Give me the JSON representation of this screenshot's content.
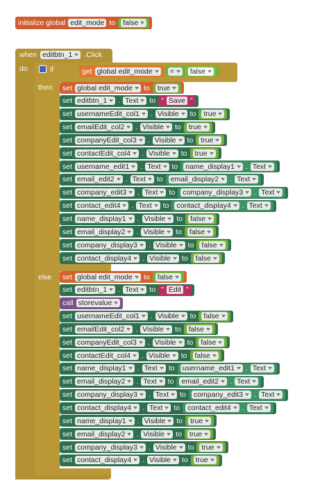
{
  "init": {
    "keyword": "initialize global",
    "name": "edit_mode",
    "to": "to",
    "value": "false"
  },
  "event": {
    "when": "when",
    "component": "editbtn_1",
    "event": ".Click",
    "do": "do",
    "if": {
      "keyword": "if",
      "get": "get",
      "variable": "global edit_mode",
      "operator": "=",
      "compare": "false",
      "then": "then",
      "else": "else"
    },
    "then_blocks": [
      {
        "kind": "global",
        "kw": "set",
        "target": "global edit_mode",
        "to": "to",
        "value": {
          "kind": "bool",
          "text": "true"
        }
      },
      {
        "kind": "component",
        "kw": "set",
        "target": "editbtn_1",
        "dot": ".",
        "prop": "Text",
        "to": "to",
        "value": {
          "kind": "string",
          "open": "\"",
          "text": "Save",
          "close": "\""
        }
      },
      {
        "kind": "component",
        "kw": "set",
        "target": "usernameEdit_col1",
        "dot": ".",
        "prop": "Visible",
        "to": "to",
        "value": {
          "kind": "bool",
          "text": "true"
        }
      },
      {
        "kind": "component",
        "kw": "set",
        "target": "emailEdit_col2",
        "dot": ".",
        "prop": "Visible",
        "to": "to",
        "value": {
          "kind": "bool",
          "text": "true"
        }
      },
      {
        "kind": "component",
        "kw": "set",
        "target": "companyEdit_col3",
        "dot": ".",
        "prop": "Visible",
        "to": "to",
        "value": {
          "kind": "bool",
          "text": "true"
        }
      },
      {
        "kind": "component",
        "kw": "set",
        "target": "contactEdit_col4",
        "dot": ".",
        "prop": "Visible",
        "to": "to",
        "value": {
          "kind": "bool",
          "text": "true"
        }
      },
      {
        "kind": "component",
        "kw": "set",
        "target": "username_edit1",
        "dot": ".",
        "prop": "Text",
        "to": "to",
        "value": {
          "kind": "getter",
          "component": "name_display1",
          "dot": ".",
          "prop": "Text"
        }
      },
      {
        "kind": "component",
        "kw": "set",
        "target": "email_edit2",
        "dot": ".",
        "prop": "Text",
        "to": "to",
        "value": {
          "kind": "getter",
          "component": "email_display2",
          "dot": ".",
          "prop": "Text"
        }
      },
      {
        "kind": "component",
        "kw": "set",
        "target": "company_edit3",
        "dot": ".",
        "prop": "Text",
        "to": "to",
        "value": {
          "kind": "getter",
          "component": "company_display3",
          "dot": ".",
          "prop": "Text"
        }
      },
      {
        "kind": "component",
        "kw": "set",
        "target": "contact_edit4",
        "dot": ".",
        "prop": "Text",
        "to": "to",
        "value": {
          "kind": "getter",
          "component": "contact_display4",
          "dot": ".",
          "prop": "Text"
        }
      },
      {
        "kind": "component",
        "kw": "set",
        "target": "name_display1",
        "dot": ".",
        "prop": "Visible",
        "to": "to",
        "value": {
          "kind": "bool",
          "text": "false"
        }
      },
      {
        "kind": "component",
        "kw": "set",
        "target": "email_display2",
        "dot": ".",
        "prop": "Visible",
        "to": "to",
        "value": {
          "kind": "bool",
          "text": "false"
        }
      },
      {
        "kind": "component",
        "kw": "set",
        "target": "company_display3",
        "dot": ".",
        "prop": "Visible",
        "to": "to",
        "value": {
          "kind": "bool",
          "text": "false"
        }
      },
      {
        "kind": "component",
        "kw": "set",
        "target": "contact_display4",
        "dot": ".",
        "prop": "Visible",
        "to": "to",
        "value": {
          "kind": "bool",
          "text": "false"
        }
      }
    ],
    "else_blocks": [
      {
        "kind": "global",
        "kw": "set",
        "target": "global edit_mode",
        "to": "to",
        "value": {
          "kind": "bool",
          "text": "false"
        }
      },
      {
        "kind": "component",
        "kw": "set",
        "target": "editbtn_1",
        "dot": ".",
        "prop": "Text",
        "to": "to",
        "value": {
          "kind": "string",
          "open": "\"",
          "text": "Edit",
          "close": "\""
        }
      },
      {
        "kind": "call",
        "kw": "call",
        "target": "storevalue"
      },
      {
        "kind": "component",
        "kw": "set",
        "target": "usernameEdit_col1",
        "dot": ".",
        "prop": "Visible",
        "to": "to",
        "value": {
          "kind": "bool",
          "text": "false"
        }
      },
      {
        "kind": "component",
        "kw": "set",
        "target": "emailEdit_col2",
        "dot": ".",
        "prop": "Visible",
        "to": "to",
        "value": {
          "kind": "bool",
          "text": "false"
        }
      },
      {
        "kind": "component",
        "kw": "set",
        "target": "companyEdit_col3",
        "dot": ".",
        "prop": "Visible",
        "to": "to",
        "value": {
          "kind": "bool",
          "text": "false"
        }
      },
      {
        "kind": "component",
        "kw": "set",
        "target": "contactEdit_col4",
        "dot": ".",
        "prop": "Visible",
        "to": "to",
        "value": {
          "kind": "bool",
          "text": "false"
        }
      },
      {
        "kind": "component",
        "kw": "set",
        "target": "name_display1",
        "dot": ".",
        "prop": "Text",
        "to": "to",
        "value": {
          "kind": "getter",
          "component": "username_edit1",
          "dot": ".",
          "prop": "Text"
        }
      },
      {
        "kind": "component",
        "kw": "set",
        "target": "email_display2",
        "dot": ".",
        "prop": "Text",
        "to": "to",
        "value": {
          "kind": "getter",
          "component": "email_edit2",
          "dot": ".",
          "prop": "Text"
        }
      },
      {
        "kind": "component",
        "kw": "set",
        "target": "company_display3",
        "dot": ".",
        "prop": "Text",
        "to": "to",
        "value": {
          "kind": "getter",
          "component": "company_edit3",
          "dot": ".",
          "prop": "Text"
        }
      },
      {
        "kind": "component",
        "kw": "set",
        "target": "contact_display4",
        "dot": ".",
        "prop": "Text",
        "to": "to",
        "value": {
          "kind": "getter",
          "component": "contact_edit4",
          "dot": ".",
          "prop": "Text"
        }
      },
      {
        "kind": "component",
        "kw": "set",
        "target": "name_display1",
        "dot": ".",
        "prop": "Visible",
        "to": "to",
        "value": {
          "kind": "bool",
          "text": "true"
        }
      },
      {
        "kind": "component",
        "kw": "set",
        "target": "email_display2",
        "dot": ".",
        "prop": "Visible",
        "to": "to",
        "value": {
          "kind": "bool",
          "text": "true"
        }
      },
      {
        "kind": "component",
        "kw": "set",
        "target": "company_display3",
        "dot": ".",
        "prop": "Visible",
        "to": "to",
        "value": {
          "kind": "bool",
          "text": "true"
        }
      },
      {
        "kind": "component",
        "kw": "set",
        "target": "contact_display4",
        "dot": ".",
        "prop": "Visible",
        "to": "to",
        "value": {
          "kind": "bool",
          "text": "true"
        }
      }
    ]
  }
}
